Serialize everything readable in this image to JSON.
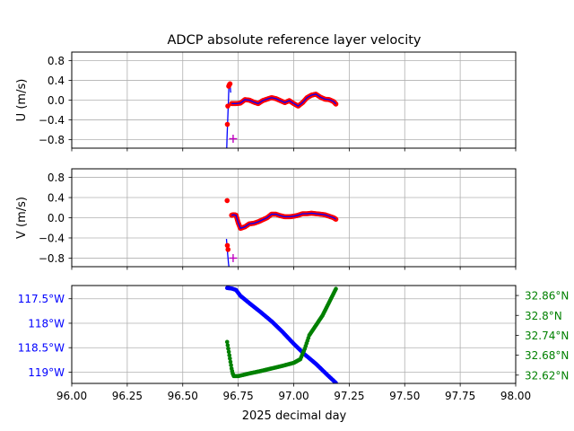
{
  "chart_data": [
    {
      "type": "line",
      "panel": "u",
      "title": "ADCP absolute reference layer velocity",
      "ylabel": "U (m/s)",
      "xlabel": "",
      "xlim": [
        96.0,
        98.0
      ],
      "ylim": [
        -0.97,
        0.97
      ],
      "yticks": [
        0.8,
        0.4,
        0.0,
        -0.4,
        -0.8
      ],
      "ytick_labels": [
        "0.8",
        "0.4",
        "0.0",
        "−0.4",
        "−0.8"
      ],
      "grid": true,
      "colors": {
        "line": "#0000ff",
        "points": "#ff0000",
        "marker": "#bf00bf"
      },
      "series_line": {
        "x": [
          96.698,
          96.7,
          96.703,
          96.706,
          96.708,
          96.711,
          96.714,
          96.716
        ],
        "y": [
          -1.0,
          -0.7,
          -0.35,
          0.0,
          0.3,
          0.33,
          0.28,
          0.15
        ]
      },
      "points_early": {
        "x": [
          96.701,
          96.703,
          96.707,
          96.71,
          96.713
        ],
        "y": [
          -0.49,
          -0.12,
          0.28,
          0.31,
          0.33
        ]
      },
      "series_smooth": {
        "x": [
          96.72,
          96.74,
          96.76,
          96.78,
          96.8,
          96.82,
          96.84,
          96.86,
          96.88,
          96.9,
          96.92,
          96.94,
          96.96,
          96.98,
          97.0,
          97.02,
          97.04,
          97.06,
          97.08,
          97.1,
          97.12,
          97.14,
          97.16,
          97.18,
          97.19
        ],
        "y": [
          -0.07,
          -0.07,
          -0.06,
          0.01,
          0.0,
          -0.04,
          -0.07,
          -0.01,
          0.02,
          0.05,
          0.03,
          -0.01,
          -0.05,
          -0.01,
          -0.07,
          -0.12,
          -0.05,
          0.05,
          0.1,
          0.12,
          0.06,
          0.02,
          0.01,
          -0.03,
          -0.08
        ]
      },
      "markers": [
        {
          "x": 96.727,
          "y": -0.78
        }
      ]
    },
    {
      "type": "line",
      "panel": "v",
      "ylabel": "V (m/s)",
      "xlabel": "",
      "xlim": [
        96.0,
        98.0
      ],
      "ylim": [
        -0.97,
        0.97
      ],
      "yticks": [
        0.8,
        0.4,
        0.0,
        -0.4,
        -0.8
      ],
      "ytick_labels": [
        "0.8",
        "0.4",
        "0.0",
        "−0.4",
        "−0.8"
      ],
      "grid": true,
      "colors": {
        "line": "#0000ff",
        "points": "#ff0000",
        "marker": "#bf00bf"
      },
      "series_line": {
        "x": [
          96.697,
          96.7,
          96.703,
          96.706,
          96.709
        ],
        "y": [
          -0.42,
          -0.6,
          -0.75,
          -0.9,
          -1.0
        ]
      },
      "points_early": {
        "x": [
          96.7,
          96.701,
          96.704
        ],
        "y": [
          0.34,
          -0.55,
          -0.63
        ]
      },
      "series_smooth": {
        "x": [
          96.72,
          96.73,
          96.74,
          96.75,
          96.76,
          96.78,
          96.8,
          96.82,
          96.84,
          96.86,
          96.88,
          96.9,
          96.92,
          96.94,
          96.96,
          96.98,
          97.0,
          97.02,
          97.04,
          97.06,
          97.08,
          97.1,
          97.12,
          97.14,
          97.16,
          97.18,
          97.19
        ],
        "y": [
          0.05,
          0.06,
          0.05,
          -0.1,
          -0.21,
          -0.18,
          -0.12,
          -0.11,
          -0.08,
          -0.04,
          0.0,
          0.07,
          0.07,
          0.04,
          0.02,
          0.02,
          0.03,
          0.05,
          0.08,
          0.08,
          0.09,
          0.08,
          0.07,
          0.06,
          0.03,
          0.0,
          -0.03
        ]
      },
      "markers": [
        {
          "x": 96.727,
          "y": -0.8
        }
      ]
    },
    {
      "type": "scatter",
      "panel": "position",
      "xlabel": "2025 decimal day",
      "xlim": [
        96.0,
        98.0
      ],
      "xticks": [
        96.0,
        96.25,
        96.5,
        96.75,
        97.0,
        97.25,
        97.5,
        97.75,
        98.0
      ],
      "xtick_labels": [
        "96.00",
        "96.25",
        "96.50",
        "96.75",
        "97.00",
        "97.25",
        "97.50",
        "97.75",
        "98.00"
      ],
      "grid": true,
      "left_axis": {
        "quantity": "longitude",
        "color": "#0000ff",
        "ylim": [
          -119.23,
          -117.23
        ],
        "yticks": [
          -117.5,
          -118.0,
          -118.5,
          -119.0
        ],
        "ytick_labels": [
          "117.5°W",
          "118°W",
          "118.5°W",
          "119°W"
        ],
        "series": {
          "x": [
            96.7,
            96.72,
            96.74,
            96.76,
            96.8,
            96.85,
            96.9,
            96.95,
            97.0,
            97.05,
            97.1,
            97.15,
            97.19
          ],
          "y": [
            -117.28,
            -117.29,
            -117.32,
            -117.44,
            -117.59,
            -117.77,
            -117.96,
            -118.18,
            -118.42,
            -118.64,
            -118.83,
            -119.05,
            -119.22
          ]
        }
      },
      "right_axis": {
        "quantity": "latitude",
        "color": "#008000",
        "ylim": [
          32.595,
          32.89
        ],
        "yticks": [
          32.86,
          32.8,
          32.74,
          32.68,
          32.62
        ],
        "ytick_labels": [
          "32.86°N",
          "32.8°N",
          "32.74°N",
          "32.68°N",
          "32.62°N"
        ],
        "series": {
          "x": [
            96.7,
            96.705,
            96.71,
            96.715,
            96.72,
            96.725,
            96.73,
            96.75,
            96.8,
            96.85,
            96.9,
            96.95,
            97.0,
            97.03,
            97.05,
            97.07,
            97.1,
            97.13,
            97.16,
            97.19
          ],
          "y": [
            32.72,
            32.7,
            32.68,
            32.66,
            32.64,
            32.625,
            32.617,
            32.617,
            32.625,
            32.632,
            32.64,
            32.648,
            32.657,
            32.668,
            32.7,
            32.74,
            32.77,
            32.8,
            32.84,
            32.88
          ]
        }
      }
    }
  ]
}
